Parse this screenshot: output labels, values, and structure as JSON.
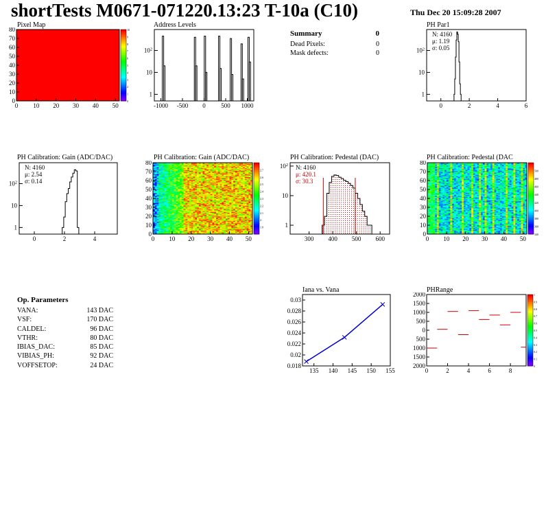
{
  "header": {
    "title": "shortTests M0671-071220.13:23 T-10a (C10)",
    "date": "Thu Dec 20 15:09:28 2007"
  },
  "summary": {
    "title": "Summary",
    "title_value": "0",
    "rows": [
      {
        "label": "Dead Pixels:",
        "value": "0"
      },
      {
        "label": "Mask defects:",
        "value": "0"
      }
    ]
  },
  "op_parameters": {
    "title": "Op. Parameters",
    "rows": [
      {
        "label": "VANA:",
        "value": "143 DAC"
      },
      {
        "label": "VSF:",
        "value": "170 DAC"
      },
      {
        "label": "CALDEL:",
        "value": "96 DAC"
      },
      {
        "label": "VTHR:",
        "value": "80 DAC"
      },
      {
        "label": "IBIAS_DAC:",
        "value": "85 DAC"
      },
      {
        "label": "VIBIAS_PH:",
        "value": "92 DAC"
      },
      {
        "label": "VOFFSETOP:",
        "value": "24 DAC"
      }
    ]
  },
  "chart_data": [
    {
      "id": "pixel_map",
      "type": "heatmap",
      "title": "Pixel Map",
      "xlim": [
        0,
        52
      ],
      "ylim": [
        0,
        80
      ],
      "xticks": [
        "0",
        "10",
        "20",
        "30",
        "40",
        "50"
      ],
      "yticks": [
        "0",
        "10",
        "20",
        "30",
        "40",
        "50",
        "60",
        "70",
        "80"
      ],
      "fill_value": 10,
      "color": "#ff0000",
      "palette": {
        "min": 0,
        "max": 10,
        "ticks": [
          "0",
          "1",
          "2",
          "3",
          "4",
          "5",
          "6",
          "7",
          "8",
          "9",
          "10"
        ]
      }
    },
    {
      "id": "address_levels",
      "type": "bar",
      "title": "Address Levels",
      "xlim": [
        -1150,
        1150
      ],
      "log_y": true,
      "ylim": [
        0.5,
        900
      ],
      "xticks": [
        "-1000",
        "-500",
        "0",
        "500",
        "1000"
      ],
      "yticks": [
        "1",
        "10",
        "10^2"
      ],
      "peaks": [
        {
          "x": -950,
          "y": 450
        },
        {
          "x": -920,
          "y": 20
        },
        {
          "x": -210,
          "y": 400
        },
        {
          "x": -180,
          "y": 20
        },
        {
          "x": 20,
          "y": 450
        },
        {
          "x": 50,
          "y": 10
        },
        {
          "x": 350,
          "y": 450
        },
        {
          "x": 380,
          "y": 15
        },
        {
          "x": 620,
          "y": 350
        },
        {
          "x": 650,
          "y": 8
        },
        {
          "x": 870,
          "y": 200
        },
        {
          "x": 900,
          "y": 5
        },
        {
          "x": 1030,
          "y": 400
        },
        {
          "x": 1060,
          "y": 30
        }
      ]
    },
    {
      "id": "ph_par1",
      "type": "bar",
      "title": "PH Par1",
      "xlim": [
        -1,
        6
      ],
      "log_y": true,
      "ylim": [
        0.5,
        900
      ],
      "xticks": [
        "0",
        "2",
        "4",
        "6"
      ],
      "yticks": [
        "1",
        "10",
        "10^2"
      ],
      "stats": [
        {
          "label": "N:",
          "value": "4160"
        },
        {
          "label": "μ:",
          "value": "1.19"
        },
        {
          "label": "σ:",
          "value": "0.05"
        }
      ],
      "x": [
        0.95,
        1.0,
        1.05,
        1.1,
        1.15,
        1.2,
        1.25,
        1.3,
        1.35,
        1.4
      ],
      "values": [
        1,
        5,
        50,
        300,
        700,
        550,
        250,
        30,
        3,
        1
      ]
    },
    {
      "id": "gain_hist",
      "type": "bar",
      "title": "PH Calibration: Gain (ADC/DAC)",
      "xlim": [
        -1,
        5.5
      ],
      "log_y": true,
      "ylim": [
        0.5,
        900
      ],
      "xticks": [
        "0",
        "2",
        "4"
      ],
      "yticks": [
        "1",
        "10",
        "10^2"
      ],
      "stats": [
        {
          "label": "N:",
          "value": "4160"
        },
        {
          "label": "μ:",
          "value": "2.54"
        },
        {
          "label": "σ:",
          "value": "0.14"
        }
      ],
      "x": [
        1.9,
        2.0,
        2.1,
        2.2,
        2.3,
        2.4,
        2.5,
        2.6,
        2.7,
        2.8,
        2.9
      ],
      "values": [
        1,
        3,
        15,
        35,
        60,
        120,
        200,
        300,
        430,
        380,
        1
      ]
    },
    {
      "id": "gain_map",
      "type": "heatmap",
      "title": "PH Calibration: Gain (ADC/DAC)",
      "xlim": [
        0,
        52
      ],
      "ylim": [
        0,
        80
      ],
      "xticks": [
        "0",
        "10",
        "20",
        "30",
        "40",
        "50"
      ],
      "yticks": [
        "0",
        "10",
        "20",
        "30",
        "40",
        "50",
        "60",
        "70",
        "80"
      ],
      "palette": {
        "min": 1.8,
        "max": 2.8,
        "ticks": [
          "1.9",
          "2",
          "2.1",
          "2.2",
          "2.3",
          "2.4",
          "2.5",
          "2.6",
          "2.7"
        ]
      }
    },
    {
      "id": "pedestal_hist",
      "type": "bar",
      "title": "PH Calibration: Pedestal (DAC)",
      "xlim": [
        220,
        640
      ],
      "log_y": true,
      "ylim": [
        0.5,
        130
      ],
      "xticks": [
        "300",
        "400",
        "500",
        "600"
      ],
      "yticks": [
        "1",
        "10",
        "10^2"
      ],
      "stats": [
        {
          "label": "N:",
          "value": "4160"
        },
        {
          "label": "μ:",
          "value": "420.1"
        },
        {
          "label": "σ:",
          "value": "30.3"
        }
      ],
      "x": [
        360,
        370,
        380,
        390,
        400,
        410,
        420,
        430,
        440,
        450,
        460,
        470,
        480,
        490,
        500,
        510,
        520,
        530,
        540,
        550,
        560
      ],
      "values": [
        1,
        2,
        12,
        28,
        45,
        50,
        48,
        42,
        38,
        33,
        30,
        26,
        22,
        18,
        12,
        8,
        5,
        3,
        2,
        1,
        1
      ],
      "fit_range": [
        360,
        495
      ]
    },
    {
      "id": "pedestal_map",
      "type": "heatmap",
      "title": "PH Calibration: Pedestal (DAC",
      "xlim": [
        0,
        52
      ],
      "ylim": [
        0,
        80
      ],
      "xticks": [
        "0",
        "10",
        "20",
        "30",
        "40",
        "50"
      ],
      "yticks": [
        "0",
        "10",
        "20",
        "30",
        "40",
        "50",
        "60",
        "70",
        "80"
      ],
      "palette": {
        "min": 340,
        "max": 520,
        "ticks": [
          "340",
          "360",
          "380",
          "400",
          "420",
          "440",
          "460",
          "480",
          "500"
        ]
      }
    },
    {
      "id": "iana_vana",
      "type": "line",
      "title": "Iana vs. Vana",
      "xlim": [
        132,
        155
      ],
      "ylim": [
        0.018,
        0.031
      ],
      "xticks": [
        "135",
        "140",
        "145",
        "150",
        "155"
      ],
      "yticks": [
        "0.018",
        "0.02",
        "0.022",
        "0.024",
        "0.026",
        "0.028",
        "0.03"
      ],
      "x": [
        133,
        143,
        153
      ],
      "y": [
        0.0188,
        0.0232,
        0.0292
      ]
    },
    {
      "id": "ph_range",
      "type": "scatter",
      "title": "PHRange",
      "xlim": [
        0,
        9.5
      ],
      "ylim": [
        -2000,
        2000
      ],
      "xticks": [
        "0",
        "2",
        "4",
        "6",
        "8"
      ],
      "yticks": [
        "2000",
        "1500",
        "1000",
        "500",
        "0",
        "500",
        "1000",
        "1500",
        "2000"
      ],
      "palette": {
        "min": 0,
        "max": 1,
        "ticks": [
          "0",
          "0.1",
          "0.2",
          "0.3",
          "0.4",
          "0.5",
          "0.6",
          "0.7",
          "0.8",
          "0.9",
          "1"
        ]
      },
      "x": [
        0,
        1,
        2,
        3,
        4,
        5,
        6,
        7,
        8,
        9
      ],
      "y": [
        -1000,
        50,
        1050,
        -250,
        1100,
        600,
        850,
        300,
        1000,
        -950
      ]
    }
  ]
}
